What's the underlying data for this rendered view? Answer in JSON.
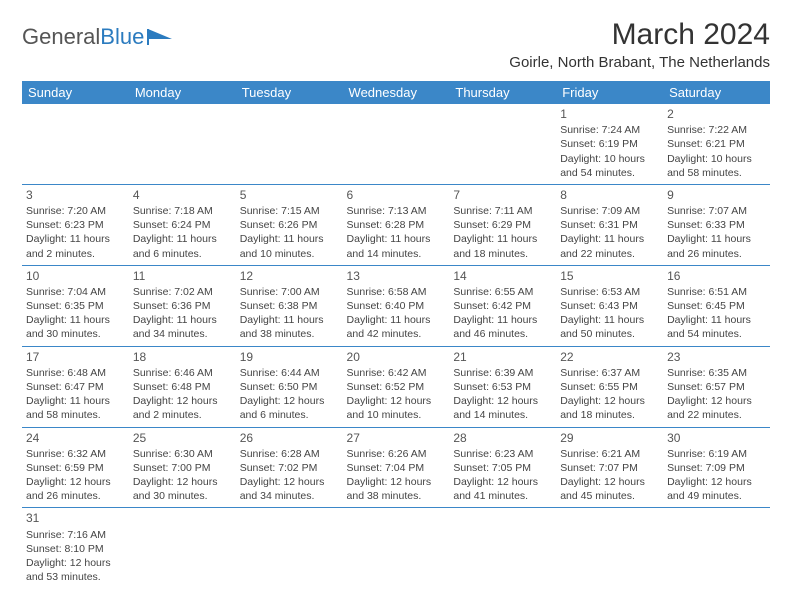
{
  "logo": {
    "text1": "General",
    "text2": "Blue"
  },
  "title": "March 2024",
  "subtitle": "Goirle, North Brabant, The Netherlands",
  "header_bg": "#3b87c8",
  "days": [
    "Sunday",
    "Monday",
    "Tuesday",
    "Wednesday",
    "Thursday",
    "Friday",
    "Saturday"
  ],
  "cells": [
    [
      null,
      null,
      null,
      null,
      null,
      {
        "n": "1",
        "sr": "Sunrise: 7:24 AM",
        "ss": "Sunset: 6:19 PM",
        "dl": "Daylight: 10 hours and 54 minutes."
      },
      {
        "n": "2",
        "sr": "Sunrise: 7:22 AM",
        "ss": "Sunset: 6:21 PM",
        "dl": "Daylight: 10 hours and 58 minutes."
      }
    ],
    [
      {
        "n": "3",
        "sr": "Sunrise: 7:20 AM",
        "ss": "Sunset: 6:23 PM",
        "dl": "Daylight: 11 hours and 2 minutes."
      },
      {
        "n": "4",
        "sr": "Sunrise: 7:18 AM",
        "ss": "Sunset: 6:24 PM",
        "dl": "Daylight: 11 hours and 6 minutes."
      },
      {
        "n": "5",
        "sr": "Sunrise: 7:15 AM",
        "ss": "Sunset: 6:26 PM",
        "dl": "Daylight: 11 hours and 10 minutes."
      },
      {
        "n": "6",
        "sr": "Sunrise: 7:13 AM",
        "ss": "Sunset: 6:28 PM",
        "dl": "Daylight: 11 hours and 14 minutes."
      },
      {
        "n": "7",
        "sr": "Sunrise: 7:11 AM",
        "ss": "Sunset: 6:29 PM",
        "dl": "Daylight: 11 hours and 18 minutes."
      },
      {
        "n": "8",
        "sr": "Sunrise: 7:09 AM",
        "ss": "Sunset: 6:31 PM",
        "dl": "Daylight: 11 hours and 22 minutes."
      },
      {
        "n": "9",
        "sr": "Sunrise: 7:07 AM",
        "ss": "Sunset: 6:33 PM",
        "dl": "Daylight: 11 hours and 26 minutes."
      }
    ],
    [
      {
        "n": "10",
        "sr": "Sunrise: 7:04 AM",
        "ss": "Sunset: 6:35 PM",
        "dl": "Daylight: 11 hours and 30 minutes."
      },
      {
        "n": "11",
        "sr": "Sunrise: 7:02 AM",
        "ss": "Sunset: 6:36 PM",
        "dl": "Daylight: 11 hours and 34 minutes."
      },
      {
        "n": "12",
        "sr": "Sunrise: 7:00 AM",
        "ss": "Sunset: 6:38 PM",
        "dl": "Daylight: 11 hours and 38 minutes."
      },
      {
        "n": "13",
        "sr": "Sunrise: 6:58 AM",
        "ss": "Sunset: 6:40 PM",
        "dl": "Daylight: 11 hours and 42 minutes."
      },
      {
        "n": "14",
        "sr": "Sunrise: 6:55 AM",
        "ss": "Sunset: 6:42 PM",
        "dl": "Daylight: 11 hours and 46 minutes."
      },
      {
        "n": "15",
        "sr": "Sunrise: 6:53 AM",
        "ss": "Sunset: 6:43 PM",
        "dl": "Daylight: 11 hours and 50 minutes."
      },
      {
        "n": "16",
        "sr": "Sunrise: 6:51 AM",
        "ss": "Sunset: 6:45 PM",
        "dl": "Daylight: 11 hours and 54 minutes."
      }
    ],
    [
      {
        "n": "17",
        "sr": "Sunrise: 6:48 AM",
        "ss": "Sunset: 6:47 PM",
        "dl": "Daylight: 11 hours and 58 minutes."
      },
      {
        "n": "18",
        "sr": "Sunrise: 6:46 AM",
        "ss": "Sunset: 6:48 PM",
        "dl": "Daylight: 12 hours and 2 minutes."
      },
      {
        "n": "19",
        "sr": "Sunrise: 6:44 AM",
        "ss": "Sunset: 6:50 PM",
        "dl": "Daylight: 12 hours and 6 minutes."
      },
      {
        "n": "20",
        "sr": "Sunrise: 6:42 AM",
        "ss": "Sunset: 6:52 PM",
        "dl": "Daylight: 12 hours and 10 minutes."
      },
      {
        "n": "21",
        "sr": "Sunrise: 6:39 AM",
        "ss": "Sunset: 6:53 PM",
        "dl": "Daylight: 12 hours and 14 minutes."
      },
      {
        "n": "22",
        "sr": "Sunrise: 6:37 AM",
        "ss": "Sunset: 6:55 PM",
        "dl": "Daylight: 12 hours and 18 minutes."
      },
      {
        "n": "23",
        "sr": "Sunrise: 6:35 AM",
        "ss": "Sunset: 6:57 PM",
        "dl": "Daylight: 12 hours and 22 minutes."
      }
    ],
    [
      {
        "n": "24",
        "sr": "Sunrise: 6:32 AM",
        "ss": "Sunset: 6:59 PM",
        "dl": "Daylight: 12 hours and 26 minutes."
      },
      {
        "n": "25",
        "sr": "Sunrise: 6:30 AM",
        "ss": "Sunset: 7:00 PM",
        "dl": "Daylight: 12 hours and 30 minutes."
      },
      {
        "n": "26",
        "sr": "Sunrise: 6:28 AM",
        "ss": "Sunset: 7:02 PM",
        "dl": "Daylight: 12 hours and 34 minutes."
      },
      {
        "n": "27",
        "sr": "Sunrise: 6:26 AM",
        "ss": "Sunset: 7:04 PM",
        "dl": "Daylight: 12 hours and 38 minutes."
      },
      {
        "n": "28",
        "sr": "Sunrise: 6:23 AM",
        "ss": "Sunset: 7:05 PM",
        "dl": "Daylight: 12 hours and 41 minutes."
      },
      {
        "n": "29",
        "sr": "Sunrise: 6:21 AM",
        "ss": "Sunset: 7:07 PM",
        "dl": "Daylight: 12 hours and 45 minutes."
      },
      {
        "n": "30",
        "sr": "Sunrise: 6:19 AM",
        "ss": "Sunset: 7:09 PM",
        "dl": "Daylight: 12 hours and 49 minutes."
      }
    ],
    [
      {
        "n": "31",
        "sr": "Sunrise: 7:16 AM",
        "ss": "Sunset: 8:10 PM",
        "dl": "Daylight: 12 hours and 53 minutes."
      },
      null,
      null,
      null,
      null,
      null,
      null
    ]
  ]
}
